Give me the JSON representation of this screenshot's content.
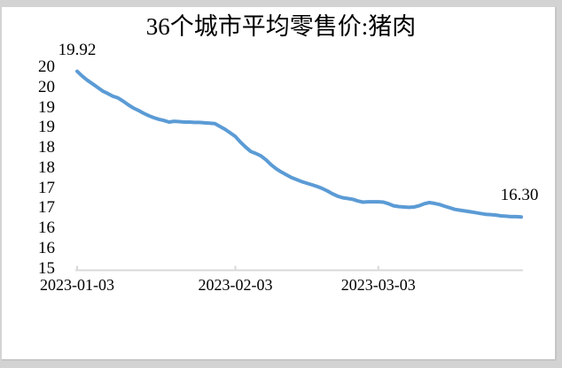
{
  "page": {
    "background": "#d3d3d3",
    "panel_background": "#ffffff",
    "panel_border": "#c6c6c6"
  },
  "chart_data": {
    "type": "line",
    "title": "36个城市平均零售价:猪肉",
    "grid": false,
    "legend_position": "none",
    "axis_color": "#D9D9D9",
    "text_color": "#000000",
    "x_axis": {
      "tick_labels": [
        "2023-01-03",
        "2023-02-03",
        "2023-03-03"
      ],
      "tick_day_offsets": [
        0,
        31,
        59
      ]
    },
    "y_axis": {
      "min": 15,
      "max": 20,
      "step": 0.5,
      "tick_labels": [
        "20",
        "20",
        "19",
        "19",
        "18",
        "18",
        "17",
        "17",
        "16",
        "16",
        "15"
      ]
    },
    "series": [
      {
        "name": "36个城市平均零售价:猪肉",
        "color": "#5B9BD5",
        "start_date": "2023-01-03",
        "end_date": "2023-03-31",
        "frequency": "daily",
        "values": [
          19.92,
          19.8,
          19.7,
          19.61,
          19.52,
          19.43,
          19.37,
          19.3,
          19.26,
          19.18,
          19.09,
          19.01,
          18.95,
          18.88,
          18.82,
          18.77,
          18.73,
          18.7,
          18.66,
          18.68,
          18.67,
          18.66,
          18.66,
          18.65,
          18.65,
          18.64,
          18.63,
          18.62,
          18.55,
          18.48,
          18.39,
          18.3,
          18.16,
          18.04,
          17.93,
          17.88,
          17.82,
          17.72,
          17.6,
          17.5,
          17.42,
          17.35,
          17.28,
          17.23,
          17.18,
          17.14,
          17.1,
          17.06,
          17.01,
          16.95,
          16.88,
          16.82,
          16.78,
          16.76,
          16.74,
          16.7,
          16.67,
          16.68,
          16.68,
          16.68,
          16.67,
          16.63,
          16.58,
          16.56,
          16.55,
          16.54,
          16.55,
          16.58,
          16.63,
          16.66,
          16.64,
          16.61,
          16.57,
          16.53,
          16.49,
          16.47,
          16.45,
          16.43,
          16.41,
          16.39,
          16.37,
          16.36,
          16.35,
          16.33,
          16.32,
          16.31,
          16.31,
          16.3
        ]
      }
    ],
    "annotations": [
      {
        "text": "19.92",
        "target": "first_point"
      },
      {
        "text": "16.30",
        "target": "last_point"
      }
    ]
  }
}
